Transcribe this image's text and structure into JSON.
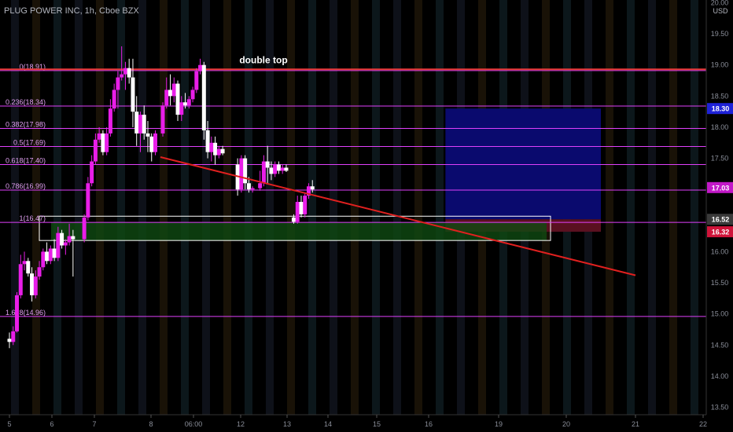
{
  "symbol_title": "PLUG POWER INC, 1h, Cboe BZX",
  "currency": "USD",
  "colors": {
    "background": "#000000",
    "fib_line": "#e040fb",
    "top_line": "#e53935",
    "trendline": "#e0201f",
    "candle_up": "#e91ee8",
    "candle_down": "#ffffff",
    "target_zone": "#0a0a6e",
    "stop_zone": "#5a1020",
    "entry_zone": "#0f4a12",
    "tag_blue": "#1e22d8",
    "tag_magenta": "#c218c8",
    "tag_gray": "#3a3a3a",
    "tag_red": "#d0143a"
  },
  "chart_data": {
    "type": "candlestick",
    "ylim": [
      13.5,
      20.0
    ],
    "y_ticks": [
      "20.00",
      "19.50",
      "19.00",
      "18.50",
      "18.00",
      "17.50",
      "17.00",
      "16.50",
      "16.00",
      "15.50",
      "15.00",
      "14.50",
      "14.00",
      "13.50"
    ],
    "x_ticks": [
      "5",
      "6",
      "7",
      "8",
      "06:00",
      "12",
      "13",
      "14",
      "15",
      "16",
      "19",
      "20",
      "21",
      "22"
    ],
    "fib_levels": [
      {
        "label": "0(18.91)",
        "value": 18.91
      },
      {
        "label": "0.236(18.34)",
        "value": 18.34
      },
      {
        "label": "0.382(17.98)",
        "value": 17.98
      },
      {
        "label": "0.5(17.69)",
        "value": 17.69
      },
      {
        "label": "0.618(17.40)",
        "value": 17.4
      },
      {
        "label": "0.786(16.99)",
        "value": 16.99
      },
      {
        "label": "1(16.47)",
        "value": 16.47
      },
      {
        "label": "1.618(14.96)",
        "value": 14.96
      }
    ],
    "top_line_value": 18.93,
    "annotation": "double top",
    "price_tags": [
      {
        "label": "18.30",
        "value": 18.3,
        "color": "tag_blue"
      },
      {
        "label": "17.03",
        "value": 17.03,
        "color": "tag_magenta"
      },
      {
        "label": "16.52",
        "value": 16.52,
        "color": "tag_gray"
      },
      {
        "label": "16.32",
        "value": 16.32,
        "color": "tag_red"
      }
    ],
    "trendline": [
      [
        8.2,
        17.52
      ],
      [
        21.0,
        15.62
      ]
    ],
    "position": {
      "entry": 16.52,
      "target": 18.3,
      "stop": 16.32,
      "x_start": 15.2,
      "x_end": 20.5
    },
    "entry_box": {
      "high": 16.57,
      "low": 16.18,
      "x_start": 5.7,
      "x_end": 19.7
    },
    "candles": [
      [
        4.8,
        14.6,
        14.7,
        14.45,
        14.55
      ],
      [
        4.9,
        14.55,
        14.8,
        14.5,
        14.72
      ],
      [
        5.0,
        14.72,
        15.35,
        14.7,
        15.3
      ],
      [
        5.1,
        15.3,
        15.95,
        15.25,
        15.8
      ],
      [
        5.2,
        15.8,
        16.0,
        15.7,
        15.85
      ],
      [
        5.3,
        15.85,
        15.9,
        15.6,
        15.65
      ],
      [
        5.4,
        15.65,
        15.75,
        15.2,
        15.3
      ],
      [
        5.5,
        15.3,
        15.7,
        15.25,
        15.6
      ],
      [
        5.6,
        15.6,
        15.85,
        15.55,
        15.75
      ],
      [
        5.7,
        15.75,
        16.05,
        15.7,
        16.0
      ],
      [
        5.8,
        16.0,
        16.15,
        15.8,
        15.85
      ],
      [
        5.9,
        15.85,
        16.1,
        15.8,
        16.05
      ],
      [
        6.0,
        16.05,
        16.2,
        15.85,
        15.9
      ],
      [
        6.1,
        15.9,
        16.4,
        15.85,
        16.3
      ],
      [
        6.2,
        16.3,
        16.35,
        16.05,
        16.1
      ],
      [
        6.3,
        16.1,
        16.2,
        15.95,
        16.15
      ],
      [
        6.4,
        16.15,
        16.45,
        16.1,
        16.25
      ],
      [
        6.5,
        16.25,
        16.35,
        15.6,
        16.2
      ],
      [
        6.8,
        16.2,
        16.6,
        16.15,
        16.55
      ],
      [
        6.9,
        16.55,
        17.2,
        16.5,
        17.1
      ],
      [
        7.0,
        17.1,
        17.55,
        17.05,
        17.45
      ],
      [
        7.1,
        17.45,
        17.9,
        17.4,
        17.8
      ],
      [
        7.2,
        17.8,
        18.0,
        17.75,
        17.9
      ],
      [
        7.3,
        17.9,
        17.95,
        17.55,
        17.6
      ],
      [
        7.4,
        17.6,
        18.0,
        17.55,
        17.9
      ],
      [
        7.5,
        17.9,
        18.45,
        17.85,
        18.3
      ],
      [
        7.6,
        18.3,
        18.7,
        18.25,
        18.6
      ],
      [
        7.7,
        18.6,
        18.9,
        18.3,
        18.8
      ],
      [
        7.8,
        18.8,
        19.3,
        18.75,
        18.85
      ],
      [
        7.9,
        18.85,
        19.05,
        18.6,
        18.95
      ],
      [
        8.0,
        18.95,
        19.1,
        18.7,
        18.8
      ],
      [
        8.1,
        18.8,
        19.1,
        18.0,
        18.25
      ],
      [
        8.2,
        18.25,
        18.5,
        17.7,
        17.9
      ],
      [
        8.3,
        17.9,
        18.25,
        17.6,
        18.2
      ],
      [
        8.4,
        18.2,
        18.35,
        17.8,
        17.9
      ],
      [
        8.5,
        17.9,
        18.1,
        17.6,
        17.85
      ],
      [
        8.6,
        17.85,
        17.9,
        17.45,
        17.6
      ],
      [
        8.7,
        17.6,
        17.95,
        17.55,
        17.9
      ],
      [
        8.9,
        17.9,
        18.4,
        17.85,
        18.35
      ],
      [
        9.0,
        18.35,
        18.8,
        18.3,
        18.6
      ],
      [
        9.1,
        18.6,
        18.85,
        18.35,
        18.5
      ],
      [
        9.2,
        18.5,
        18.8,
        18.4,
        18.7
      ],
      [
        9.3,
        18.7,
        18.75,
        18.1,
        18.2
      ],
      [
        9.4,
        18.2,
        18.5,
        18.1,
        18.4
      ],
      [
        9.5,
        18.4,
        18.55,
        18.3,
        18.35
      ],
      [
        9.6,
        18.35,
        18.5,
        18.3,
        18.45
      ],
      [
        9.7,
        18.45,
        18.65,
        18.4,
        18.6
      ],
      [
        9.8,
        18.6,
        18.95,
        18.55,
        18.9
      ],
      [
        9.9,
        18.9,
        19.1,
        18.85,
        19.0
      ],
      [
        10.0,
        19.0,
        19.05,
        17.8,
        17.95
      ],
      [
        10.1,
        17.95,
        18.1,
        17.5,
        17.6
      ],
      [
        10.2,
        17.6,
        17.85,
        17.45,
        17.75
      ],
      [
        10.3,
        17.75,
        17.85,
        17.4,
        17.55
      ],
      [
        10.4,
        17.55,
        17.7,
        17.5,
        17.65
      ],
      [
        10.5,
        17.65,
        17.7,
        17.55,
        17.58
      ],
      [
        10.9,
        17.4,
        17.5,
        16.9,
        17.0
      ],
      [
        11.0,
        17.0,
        17.55,
        16.95,
        17.5
      ],
      [
        11.1,
        17.5,
        17.55,
        17.0,
        17.1
      ],
      [
        11.2,
        17.1,
        17.2,
        16.95,
        17.0
      ],
      [
        11.3,
        17.0,
        17.05,
        16.95,
        17.02
      ],
      [
        11.5,
        17.02,
        17.3,
        16.98,
        17.1
      ],
      [
        11.6,
        17.1,
        17.55,
        17.05,
        17.45
      ],
      [
        11.7,
        17.45,
        17.7,
        17.1,
        17.35
      ],
      [
        11.8,
        17.35,
        17.45,
        17.15,
        17.25
      ],
      [
        11.9,
        17.25,
        17.45,
        17.2,
        17.4
      ],
      [
        12.0,
        17.4,
        17.45,
        17.25,
        17.3
      ],
      [
        12.1,
        17.3,
        17.4,
        17.25,
        17.35
      ],
      [
        12.2,
        17.35,
        17.4,
        17.28,
        17.3
      ],
      [
        12.4,
        16.55,
        16.6,
        16.45,
        16.48
      ],
      [
        12.5,
        16.48,
        16.9,
        16.45,
        16.8
      ],
      [
        12.6,
        16.8,
        16.9,
        16.55,
        16.6
      ],
      [
        12.7,
        16.6,
        16.95,
        16.55,
        16.9
      ],
      [
        12.8,
        16.9,
        17.1,
        16.85,
        17.05
      ],
      [
        12.9,
        17.05,
        17.15,
        16.95,
        17.0
      ]
    ]
  }
}
